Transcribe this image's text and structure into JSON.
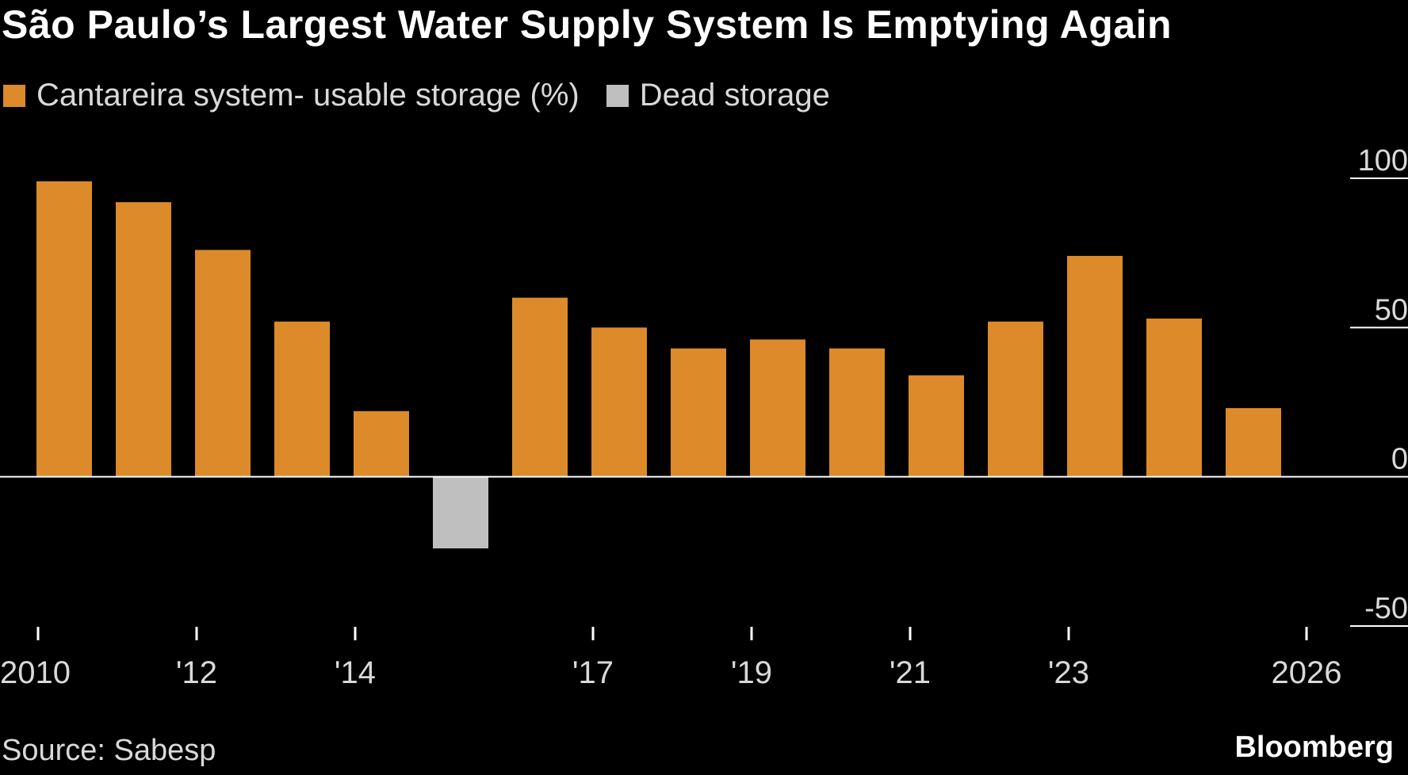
{
  "colors": {
    "background": "#000000",
    "usable": "#DC8A2A",
    "dead": "#BFBFBF",
    "axis": "#FFFFFF",
    "text": "#D9D9D9"
  },
  "chart_data": {
    "type": "bar",
    "title": "São Paulo’s Largest Water Supply System Is Emptying Again",
    "legend": [
      {
        "name": "Cantareira system- usable storage (%)",
        "color": "#DC8A2A"
      },
      {
        "name": "Dead storage",
        "color": "#BFBFBF"
      }
    ],
    "categories": [
      "2010",
      "2011",
      "2012",
      "2013",
      "2014",
      "2015",
      "2016",
      "2017",
      "2018",
      "2019",
      "2020",
      "2021",
      "2022",
      "2023",
      "2024",
      "2025",
      "2026"
    ],
    "series": [
      {
        "name": "Cantareira system- usable storage (%)",
        "values": [
          99,
          92,
          76,
          52,
          22,
          0,
          60,
          50,
          43,
          46,
          43,
          34,
          52,
          74,
          53,
          23,
          0
        ]
      },
      {
        "name": "Dead storage",
        "values": [
          0,
          0,
          0,
          0,
          0,
          -24,
          0,
          0,
          0,
          0,
          0,
          0,
          0,
          0,
          0,
          0,
          0
        ]
      }
    ],
    "ylim": [
      -50,
      100
    ],
    "yticks": [
      100,
      50,
      0,
      -50
    ],
    "xtick_labels": [
      {
        "category": "2010",
        "label": "2010"
      },
      {
        "category": "2012",
        "label": "'12"
      },
      {
        "category": "2014",
        "label": "'14"
      },
      {
        "category": "2017",
        "label": "'17"
      },
      {
        "category": "2019",
        "label": "'19"
      },
      {
        "category": "2021",
        "label": "'21"
      },
      {
        "category": "2023",
        "label": "'23"
      },
      {
        "category": "2026",
        "label": "2026"
      }
    ],
    "xlabel": "",
    "ylabel": "",
    "grid": true
  },
  "footer": {
    "source": "Source: Sabesp",
    "brand": "Bloomberg"
  }
}
